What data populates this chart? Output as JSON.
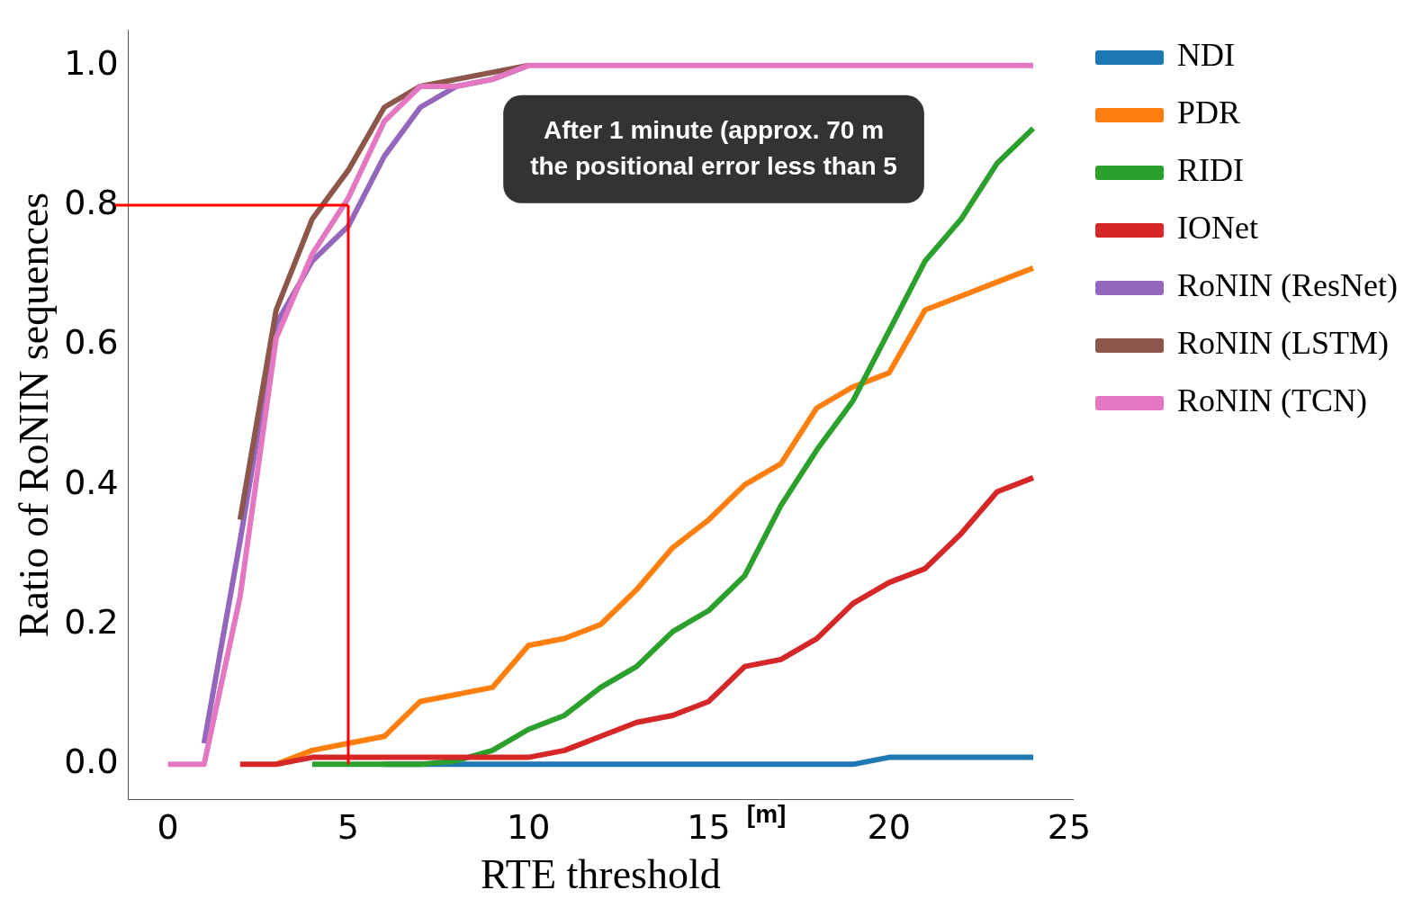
{
  "chart_data": {
    "type": "line",
    "xlabel": "RTE threshold",
    "ylabel": "Ratio of RoNIN sequences",
    "x": [
      0,
      1,
      2,
      3,
      4,
      5,
      6,
      7,
      8,
      9,
      10,
      11,
      12,
      13,
      14,
      15,
      16,
      17,
      18,
      19,
      20,
      21,
      22,
      23,
      24
    ],
    "series": [
      {
        "name": "NDI",
        "color": "#1f77b4",
        "values": [
          null,
          null,
          null,
          null,
          null,
          null,
          0,
          0,
          0,
          0,
          0,
          0,
          0,
          0,
          0,
          0,
          0,
          0,
          0,
          0,
          0.01,
          0.01,
          0.01,
          0.01,
          0.01
        ]
      },
      {
        "name": "PDR",
        "color": "#ff7f0e",
        "values": [
          null,
          null,
          null,
          0,
          0.02,
          0.03,
          0.04,
          0.09,
          0.1,
          0.11,
          0.17,
          0.18,
          0.2,
          0.25,
          0.31,
          0.35,
          0.4,
          0.43,
          0.51,
          0.54,
          0.56,
          0.65,
          0.67,
          0.69,
          0.71
        ]
      },
      {
        "name": "RIDI",
        "color": "#2ca02c",
        "values": [
          null,
          null,
          null,
          null,
          0,
          0,
          0,
          0,
          0.005,
          0.02,
          0.05,
          0.07,
          0.11,
          0.14,
          0.19,
          0.22,
          0.27,
          0.37,
          0.45,
          0.52,
          0.62,
          0.72,
          0.78,
          0.86,
          0.91
        ]
      },
      {
        "name": "IONet",
        "color": "#d62728",
        "values": [
          null,
          null,
          0,
          0,
          0.01,
          0.01,
          0.01,
          0.01,
          0.01,
          0.01,
          0.01,
          0.02,
          0.04,
          0.06,
          0.07,
          0.09,
          0.14,
          0.15,
          0.18,
          0.23,
          0.26,
          0.28,
          0.33,
          0.39,
          0.41
        ]
      },
      {
        "name": "RoNIN (ResNet)",
        "color": "#9467bd",
        "values": [
          null,
          0.03,
          0.32,
          0.63,
          0.72,
          0.77,
          0.87,
          0.94,
          0.97,
          0.98,
          1,
          null,
          null,
          null,
          null,
          null,
          null,
          null,
          null,
          null,
          null,
          null,
          null,
          null,
          null
        ]
      },
      {
        "name": "RoNIN (LSTM)",
        "color": "#8c564b",
        "values": [
          null,
          null,
          0.35,
          0.65,
          0.78,
          0.85,
          0.94,
          0.97,
          0.98,
          0.99,
          1,
          null,
          null,
          null,
          null,
          null,
          null,
          null,
          null,
          null,
          null,
          null,
          null,
          null,
          null
        ]
      },
      {
        "name": "RoNIN (TCN)",
        "color": "#e377c2",
        "values": [
          0,
          0,
          0.24,
          0.61,
          0.73,
          0.81,
          0.92,
          0.97,
          0.97,
          0.98,
          1,
          1,
          1,
          1,
          1,
          1,
          1,
          1,
          1,
          1,
          1,
          1,
          1,
          1,
          1
        ]
      }
    ],
    "xlim": [
      -1.1,
      25.1
    ],
    "ylim": [
      -0.05,
      1.05
    ],
    "xticks": [
      0,
      5,
      10,
      15,
      20,
      25
    ],
    "yticks": [
      {
        "value": 0,
        "label": "0.0"
      },
      {
        "value": 0.2,
        "label": "0.2"
      },
      {
        "value": 0.4,
        "label": "0.4"
      },
      {
        "value": 0.6,
        "label": "0.6"
      },
      {
        "value": 0.8,
        "label": "0.8"
      },
      {
        "value": 1,
        "label": "1.0"
      }
    ],
    "ref_lines": [
      {
        "axis": "y",
        "value": 0.8,
        "color": "#ff0000"
      },
      {
        "axis": "x",
        "value": 5,
        "color": "#ff0000"
      }
    ],
    "annotations": [
      "After 1 minute (approx. 70 m",
      "the positional error less than 5",
      "[m]"
    ],
    "grid": false,
    "legend": "right",
    "marker": "none",
    "line_style": "solid"
  }
}
